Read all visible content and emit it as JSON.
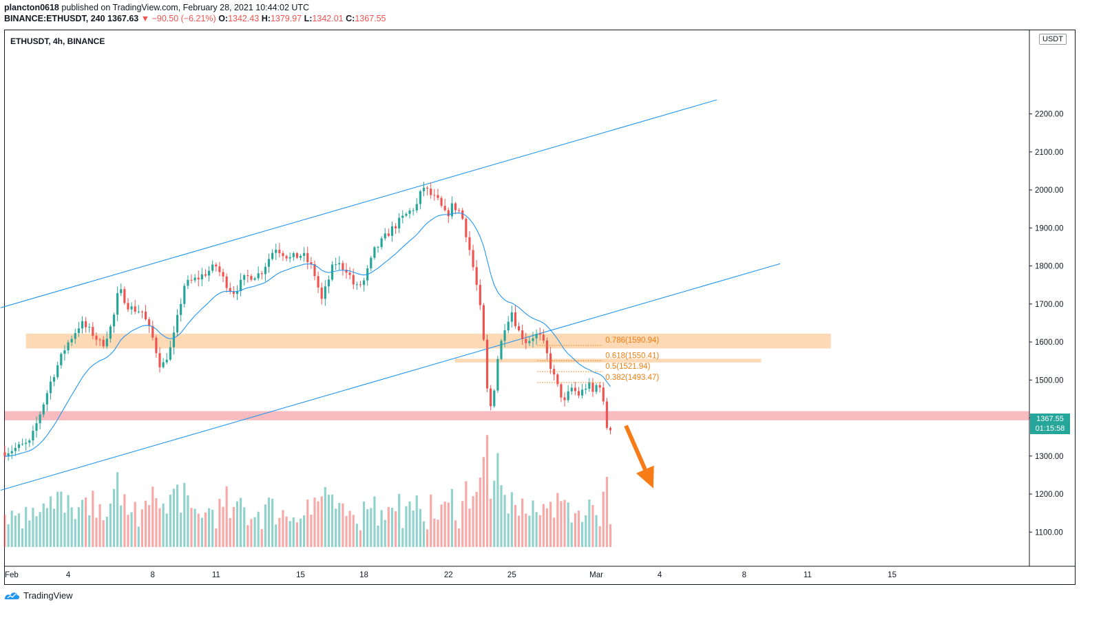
{
  "header": {
    "author": "plancton0618",
    "published_text": "published on TradingView.com, February 28, 2021 10:44:02 UTC",
    "symbol": "BINANCE:ETHUSDT, 240",
    "last": "1367.63",
    "arrow": "▼",
    "change": "−90.50 (−6.21%)",
    "o_label": "O:",
    "o_value": "1342.43",
    "h_label": "H:",
    "h_value": "1379.97",
    "l_label": "L:",
    "l_value": "1342.01",
    "c_label": "C:",
    "c_value": "1367.55"
  },
  "legend_label": "ETHUSDT, 4h, BINANCE",
  "footer_brand": "TradingView",
  "price_tag": {
    "price": "1367.55",
    "countdown": "01:15:58"
  },
  "chart_data": {
    "type": "candlestick",
    "currency": "USDT",
    "ylim": [
      1010,
      2420
    ],
    "y_ticks": [
      1100,
      1200,
      1300,
      1400,
      1500,
      1600,
      1700,
      1800,
      1900,
      2000,
      2100,
      2200
    ],
    "x_range_days": [
      0,
      48.5
    ],
    "x_ticks": [
      {
        "label": "Feb",
        "day": 0
      },
      {
        "label": "4",
        "day": 3
      },
      {
        "label": "8",
        "day": 7
      },
      {
        "label": "11",
        "day": 10
      },
      {
        "label": "15",
        "day": 14
      },
      {
        "label": "18",
        "day": 17
      },
      {
        "label": "22",
        "day": 21
      },
      {
        "label": "25",
        "day": 24
      },
      {
        "label": "Mar",
        "day": 28
      },
      {
        "label": "4",
        "day": 31
      },
      {
        "label": "8",
        "day": 35
      },
      {
        "label": "11",
        "day": 38
      },
      {
        "label": "15",
        "day": 42
      }
    ],
    "anchors": [
      [
        0,
        1310
      ],
      [
        1.2,
        1335
      ],
      [
        2.2,
        1500
      ],
      [
        2.9,
        1590
      ],
      [
        3.6,
        1650
      ],
      [
        4.2,
        1620
      ],
      [
        4.6,
        1590
      ],
      [
        5.1,
        1650
      ],
      [
        5.4,
        1740
      ],
      [
        5.9,
        1690
      ],
      [
        6.5,
        1680
      ],
      [
        7.0,
        1610
      ],
      [
        7.4,
        1530
      ],
      [
        7.9,
        1590
      ],
      [
        8.5,
        1750
      ],
      [
        9.2,
        1770
      ],
      [
        10.0,
        1800
      ],
      [
        10.4,
        1760
      ],
      [
        10.8,
        1730
      ],
      [
        11.4,
        1770
      ],
      [
        12.1,
        1780
      ],
      [
        12.8,
        1850
      ],
      [
        13.5,
        1820
      ],
      [
        14.1,
        1830
      ],
      [
        14.6,
        1790
      ],
      [
        15.0,
        1710
      ],
      [
        15.6,
        1810
      ],
      [
        16.2,
        1790
      ],
      [
        16.6,
        1740
      ],
      [
        17.0,
        1760
      ],
      [
        17.5,
        1840
      ],
      [
        18.2,
        1890
      ],
      [
        18.9,
        1930
      ],
      [
        19.5,
        1960
      ],
      [
        19.8,
        2010
      ],
      [
        20.1,
        1990
      ],
      [
        20.5,
        1970
      ],
      [
        20.9,
        1930
      ],
      [
        21.2,
        1960
      ],
      [
        21.6,
        1940
      ],
      [
        21.9,
        1870
      ],
      [
        22.3,
        1760
      ],
      [
        22.6,
        1650
      ],
      [
        22.85,
        1460
      ],
      [
        23.05,
        1420
      ],
      [
        23.3,
        1550
      ],
      [
        23.7,
        1650
      ],
      [
        24.0,
        1680
      ],
      [
        24.3,
        1630
      ],
      [
        24.7,
        1600
      ],
      [
        25.1,
        1620
      ],
      [
        25.4,
        1610
      ],
      [
        25.7,
        1560
      ],
      [
        26.1,
        1490
      ],
      [
        26.5,
        1440
      ],
      [
        26.8,
        1480
      ],
      [
        27.2,
        1460
      ],
      [
        27.6,
        1490
      ],
      [
        27.9,
        1460
      ],
      [
        28.1,
        1510
      ],
      [
        28.35,
        1430
      ],
      [
        28.55,
        1360
      ],
      [
        28.75,
        1367.55
      ]
    ],
    "ema_color": "#2196f3",
    "channel_lines": [
      {
        "from": [
          -0.2,
          1690
        ],
        "to": [
          33.7,
          2237
        ]
      },
      {
        "from": [
          -0.2,
          1210
        ],
        "to": [
          36.7,
          1806
        ]
      }
    ],
    "zones": [
      {
        "name": "resistance-zone-upper",
        "y_from": 1583,
        "y_to": 1622,
        "x_from": 1.0,
        "x_to": 39.1,
        "color": "#fdd9b5"
      },
      {
        "name": "resistance-zone-narrow",
        "y_from": 1546,
        "y_to": 1556,
        "x_from": 21.3,
        "x_to": 35.8,
        "color": "#fdd9b5"
      },
      {
        "name": "support-zone",
        "y_from": 1394,
        "y_to": 1418,
        "x_from": -0.2,
        "x_to": 48.5,
        "color": "#f8bbbf"
      }
    ],
    "fib_levels": [
      {
        "label": "0.786(1590.94)",
        "value": 1590.94
      },
      {
        "label": "0.618(1550.41)",
        "value": 1550.41
      },
      {
        "label": "0.5(1521.94)",
        "value": 1521.94
      },
      {
        "label": "0.382(1493.47)",
        "value": 1493.47
      }
    ],
    "fib_x_range": [
      25.2,
      28.3
    ],
    "arrow": {
      "from": [
        29.4,
        1380
      ],
      "to": [
        30.7,
        1215
      ],
      "color": "#f77b17"
    },
    "up_color": "#26a69a",
    "down_color": "#ef5350",
    "last_price": 1367.55
  }
}
